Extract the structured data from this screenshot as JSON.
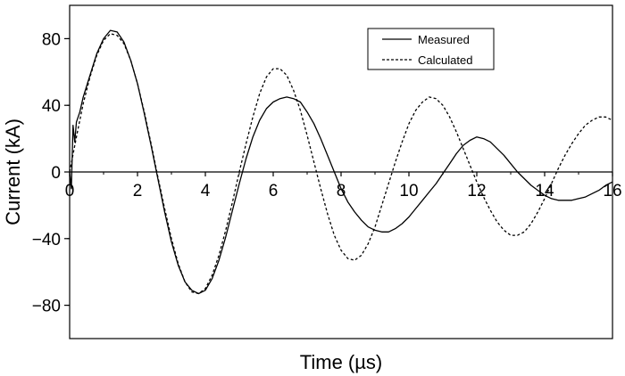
{
  "chart_data": {
    "type": "line",
    "title": "",
    "xlabel": "Time (µs)",
    "ylabel": "Current (kA)",
    "xlim": [
      0,
      16
    ],
    "ylim": [
      -100,
      100
    ],
    "x_ticks": [
      "0",
      "2",
      "4",
      "6",
      "8",
      "10",
      "12",
      "14",
      "16"
    ],
    "y_ticks": [
      "80",
      "40",
      "0",
      "−40",
      "−80"
    ],
    "legend_position": "top-right",
    "grid": false,
    "series": [
      {
        "name": "Measured",
        "line_style": "solid",
        "color": "#000000",
        "x": [
          0.0,
          0.05,
          0.1,
          0.15,
          0.2,
          0.3,
          0.4,
          0.6,
          0.8,
          1.0,
          1.2,
          1.4,
          1.6,
          1.8,
          2.0,
          2.2,
          2.4,
          2.6,
          2.8,
          3.0,
          3.2,
          3.4,
          3.6,
          3.8,
          4.0,
          4.2,
          4.4,
          4.6,
          4.8,
          5.0,
          5.2,
          5.4,
          5.6,
          5.8,
          6.0,
          6.2,
          6.4,
          6.6,
          6.8,
          7.0,
          7.2,
          7.4,
          7.6,
          7.8,
          8.0,
          8.2,
          8.4,
          8.6,
          8.8,
          9.0,
          9.2,
          9.4,
          9.6,
          9.8,
          10.0,
          10.2,
          10.4,
          10.6,
          10.8,
          11.0,
          11.2,
          11.4,
          11.6,
          11.8,
          12.0,
          12.2,
          12.4,
          12.6,
          12.8,
          13.0,
          13.2,
          13.4,
          13.6,
          13.8,
          14.0,
          14.2,
          14.4,
          14.6,
          14.8,
          15.0,
          15.2,
          15.4,
          15.6,
          15.8,
          16.0
        ],
        "values": [
          0,
          -10,
          28,
          18,
          30,
          36,
          45,
          58,
          71,
          80,
          85,
          84,
          78,
          67,
          53,
          35,
          16,
          -4,
          -24,
          -42,
          -56,
          -66,
          -71,
          -73,
          -71,
          -64,
          -53,
          -39,
          -23,
          -7,
          8,
          21,
          31,
          38,
          42,
          44,
          45,
          44,
          42,
          36,
          29,
          20,
          10,
          0,
          -10,
          -18,
          -24,
          -29,
          -33,
          -35,
          -36,
          -36,
          -34,
          -31,
          -27,
          -22,
          -17,
          -12,
          -7,
          -1,
          5,
          11,
          16,
          19,
          21,
          20,
          18,
          14,
          10,
          5,
          0,
          -4,
          -8,
          -11,
          -14,
          -16,
          -17,
          -17,
          -17,
          -16,
          -15,
          -13,
          -11,
          -8,
          -6
        ]
      },
      {
        "name": "Calculated",
        "line_style": "dashed",
        "color": "#000000",
        "x": [
          0.0,
          0.2,
          0.4,
          0.6,
          0.8,
          1.0,
          1.2,
          1.4,
          1.6,
          1.8,
          2.0,
          2.2,
          2.4,
          2.6,
          2.8,
          3.0,
          3.2,
          3.4,
          3.6,
          3.8,
          4.0,
          4.2,
          4.4,
          4.6,
          4.8,
          5.0,
          5.2,
          5.4,
          5.6,
          5.8,
          6.0,
          6.2,
          6.4,
          6.6,
          6.8,
          7.0,
          7.2,
          7.4,
          7.6,
          7.8,
          8.0,
          8.2,
          8.4,
          8.6,
          8.8,
          9.0,
          9.2,
          9.4,
          9.6,
          9.8,
          10.0,
          10.2,
          10.4,
          10.6,
          10.8,
          11.0,
          11.2,
          11.4,
          11.6,
          11.8,
          12.0,
          12.2,
          12.4,
          12.6,
          12.8,
          13.0,
          13.2,
          13.4,
          13.6,
          13.8,
          14.0,
          14.2,
          14.4,
          14.6,
          14.8,
          15.0,
          15.2,
          15.4,
          15.6,
          15.8,
          16.0
        ],
        "values": [
          0,
          21,
          41,
          57,
          70,
          79,
          83,
          82,
          77,
          67,
          53,
          36,
          17,
          -3,
          -22,
          -40,
          -55,
          -66,
          -72,
          -73,
          -70,
          -62,
          -50,
          -35,
          -18,
          0,
          17,
          33,
          47,
          57,
          62,
          62,
          58,
          49,
          37,
          22,
          6,
          -10,
          -25,
          -38,
          -47,
          -52,
          -53,
          -50,
          -43,
          -33,
          -20,
          -7,
          6,
          18,
          29,
          37,
          42,
          45,
          44,
          40,
          33,
          24,
          14,
          4,
          -6,
          -15,
          -23,
          -30,
          -35,
          -38,
          -38,
          -36,
          -31,
          -24,
          -16,
          -7,
          2,
          10,
          17,
          23,
          28,
          31,
          33,
          33,
          31
        ]
      }
    ]
  }
}
